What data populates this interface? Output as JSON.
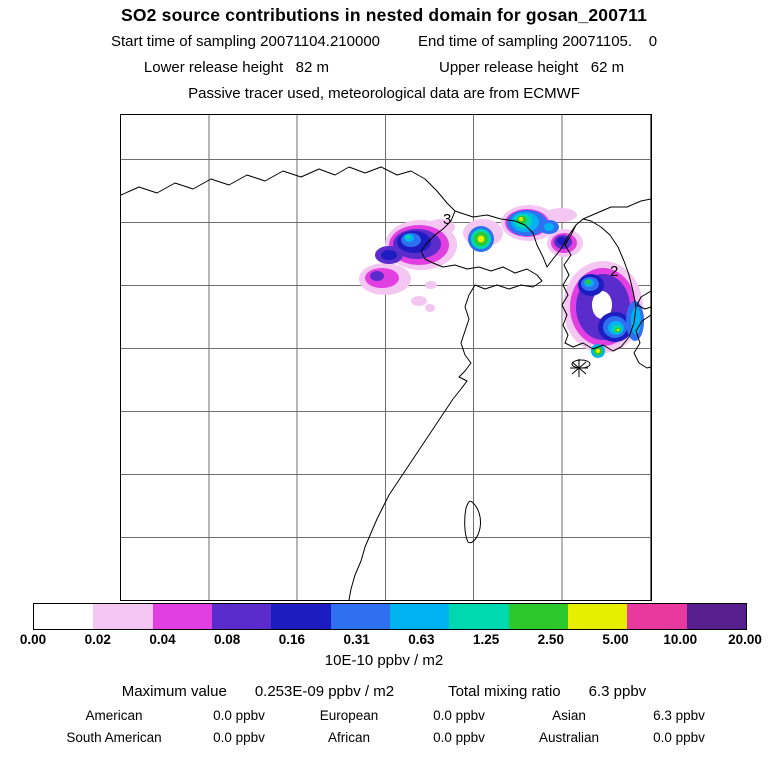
{
  "header": {
    "title": "SO2 source contributions in nested domain for gosan_200711",
    "start_time": "Start time of sampling 20071104.210000",
    "end_time": "End time of sampling 20071105.    0",
    "lower_release_height": "Lower release height   82 m",
    "upper_release_height": "Upper release height   62 m",
    "tracer_note": "Passive tracer used, meteorological data are from ECMWF"
  },
  "map": {
    "source_markers": [
      {
        "label": "3"
      },
      {
        "label": "2"
      }
    ],
    "receptor_marker": "asterisk"
  },
  "colorbar": {
    "colors": [
      "#ffffff",
      "#f4c7f2",
      "#e13fe1",
      "#5b2ccc",
      "#1c1cc0",
      "#2e70f0",
      "#00b2f0",
      "#00d8b0",
      "#2cc82c",
      "#e8ee00",
      "#e8399f",
      "#571f8e"
    ],
    "ticks": [
      "0.00",
      "0.02",
      "0.04",
      "0.08",
      "0.16",
      "0.31",
      "0.63",
      "1.25",
      "2.50",
      "5.00",
      "10.00",
      "20.00"
    ],
    "units": "10E-10 ppbv / m2"
  },
  "stats": {
    "maximum_label": "Maximum value",
    "maximum_value": "0.253E-09 ppbv / m2",
    "total_label": "Total mixing ratio",
    "total_value": "6.3 ppbv",
    "regions": [
      {
        "name": "American",
        "value": "0.0 ppbv"
      },
      {
        "name": "European",
        "value": "0.0 ppbv"
      },
      {
        "name": "Asian",
        "value": "6.3 ppbv"
      },
      {
        "name": "South American",
        "value": "0.0 ppbv"
      },
      {
        "name": "African",
        "value": "0.0 ppbv"
      },
      {
        "name": "Australian",
        "value": "0.0 ppbv"
      }
    ]
  },
  "chart_data": {
    "type": "heatmap",
    "title": "SO2 source contributions in nested domain for gosan_200711",
    "field": "SO2 source contribution over East Asia map (coastlines with lat/lon gridlines)",
    "units": "10E-10 ppbv / m2",
    "scale": "logarithmic, doubling steps",
    "levels": [
      0.0,
      0.02,
      0.04,
      0.08,
      0.16,
      0.31,
      0.63,
      1.25,
      2.5,
      5.0,
      10.0,
      20.0
    ],
    "level_colors": [
      "#ffffff",
      "#f4c7f2",
      "#e13fe1",
      "#5b2ccc",
      "#1c1cc0",
      "#2e70f0",
      "#00b2f0",
      "#00d8b0",
      "#2cc82c",
      "#e8ee00",
      "#e8399f",
      "#571f8e"
    ],
    "annotations": [
      {
        "label": "3",
        "type": "source-region-number",
        "location": "plume north of Bohai Sea"
      },
      {
        "label": "2",
        "type": "source-region-number",
        "location": "plume over Korean peninsula"
      },
      {
        "label": "*",
        "type": "receptor-location",
        "location": "Gosan, south of Korea"
      }
    ],
    "maximum_value": "0.253E-09 ppbv / m2",
    "total_mixing_ratio_ppbv": 6.3,
    "regional_contributions_ppbv": {
      "American": 0.0,
      "European": 0.0,
      "Asian": 6.3,
      "South American": 0.0,
      "African": 0.0,
      "Australian": 0.0
    }
  }
}
